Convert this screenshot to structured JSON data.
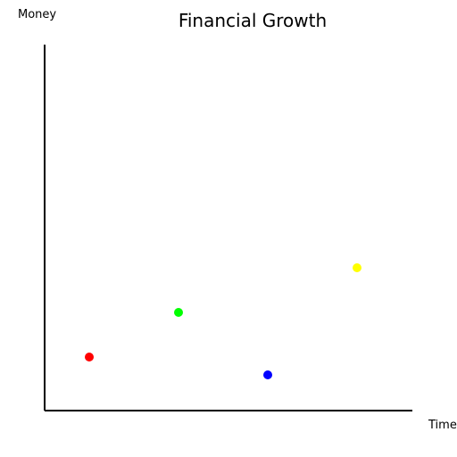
{
  "chart_data": {
    "type": "scatter",
    "title": "Financial Growth",
    "xlabel": "Time",
    "ylabel": "Money",
    "xlim": [
      0,
      8.2
    ],
    "ylim": [
      0,
      8.2
    ],
    "grid": false,
    "points": [
      {
        "x": 1,
        "y": 1.2,
        "color": "#ff0000"
      },
      {
        "x": 3,
        "y": 2.2,
        "color": "#00ff00"
      },
      {
        "x": 5,
        "y": 0.8,
        "color": "#0000ff"
      },
      {
        "x": 7,
        "y": 3.2,
        "color": "#ffff00"
      }
    ]
  }
}
